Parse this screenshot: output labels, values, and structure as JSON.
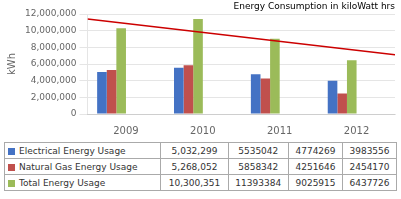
{
  "chart_data": {
    "type": "bar",
    "categories": [
      "2009",
      "2010",
      "2011",
      "2012"
    ],
    "series": [
      {
        "name": "Electrical Energy Usage",
        "color": "#4472C4",
        "values": [
          5032299,
          5535042,
          4774269,
          3983556
        ],
        "table_values": [
          "5,032,299",
          "5535042",
          "4774269",
          "3983556"
        ]
      },
      {
        "name": "Natural Gas Energy Usage",
        "color": "#C0504D",
        "values": [
          5268052,
          5858342,
          4251646,
          2454170
        ],
        "table_values": [
          "5,268,052",
          "5858342",
          "4251646",
          "2454170"
        ]
      },
      {
        "name": "Total Energy Usage",
        "color": "#9BBB59",
        "values": [
          10300351,
          11393384,
          9025915,
          6437726
        ],
        "table_values": [
          "10,300,351",
          "11393384",
          "9025915",
          "6437726"
        ]
      }
    ],
    "trendline": {
      "color": "#CC0000",
      "values": [
        11400000,
        7100000
      ]
    },
    "annotation": "Energy Consumption in kiloWatt hrs",
    "ylabel": "kWh",
    "ylim": [
      0,
      12000000
    ],
    "yticks": [
      0,
      {
        "value": 2000000,
        "label": "2,000,000"
      },
      {
        "value": 4000000,
        "label": "4,000,000"
      },
      {
        "value": 6000000,
        "label": "6,000,000"
      },
      {
        "value": 8000000,
        "label": "8,000,000"
      },
      {
        "value": 10000000,
        "label": "10,000,000"
      },
      {
        "value": 12000000,
        "label": "12,000,000"
      }
    ],
    "grid": true
  }
}
